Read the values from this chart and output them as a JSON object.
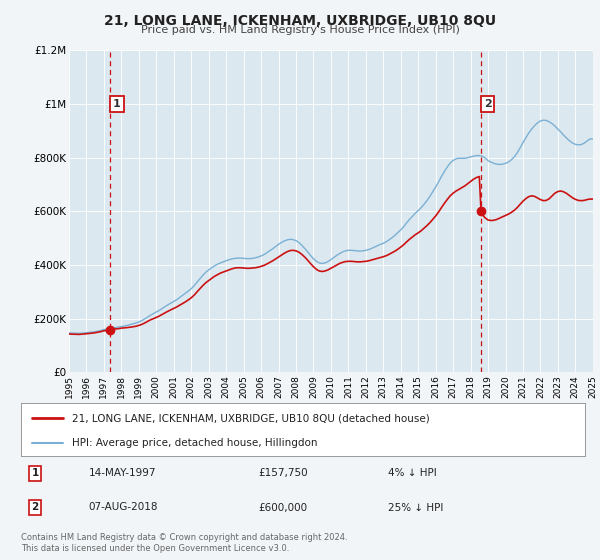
{
  "title": "21, LONG LANE, ICKENHAM, UXBRIDGE, UB10 8QU",
  "subtitle": "Price paid vs. HM Land Registry's House Price Index (HPI)",
  "background_color": "#f2f5f8",
  "plot_background": "#dce8f0",
  "xlim": [
    1995,
    2025
  ],
  "ylim": [
    0,
    1200000
  ],
  "yticks": [
    0,
    200000,
    400000,
    600000,
    800000,
    1000000,
    1200000
  ],
  "ytick_labels": [
    "£0",
    "£200K",
    "£400K",
    "£600K",
    "£800K",
    "£1M",
    "£1.2M"
  ],
  "xticks": [
    1995,
    1996,
    1997,
    1998,
    1999,
    2000,
    2001,
    2002,
    2003,
    2004,
    2005,
    2006,
    2007,
    2008,
    2009,
    2010,
    2011,
    2012,
    2013,
    2014,
    2015,
    2016,
    2017,
    2018,
    2019,
    2020,
    2021,
    2022,
    2023,
    2024,
    2025
  ],
  "sale1_x": 1997.37,
  "sale1_y": 157750,
  "sale2_x": 2018.6,
  "sale2_y": 600000,
  "legend_line1": "21, LONG LANE, ICKENHAM, UXBRIDGE, UB10 8QU (detached house)",
  "legend_line2": "HPI: Average price, detached house, Hillingdon",
  "table_row1": [
    "1",
    "14-MAY-1997",
    "£157,750",
    "4% ↓ HPI"
  ],
  "table_row2": [
    "2",
    "07-AUG-2018",
    "£600,000",
    "25% ↓ HPI"
  ],
  "footer": "Contains HM Land Registry data © Crown copyright and database right 2024.\nThis data is licensed under the Open Government Licence v3.0.",
  "red_color": "#cc1111",
  "blue_color": "#7ab0d4",
  "hpi_red": [
    [
      1995.0,
      143000
    ],
    [
      1995.08,
      142800
    ],
    [
      1995.17,
      142600
    ],
    [
      1995.25,
      142400
    ],
    [
      1995.33,
      142200
    ],
    [
      1995.42,
      142000
    ],
    [
      1995.5,
      141800
    ],
    [
      1995.58,
      141600
    ],
    [
      1995.67,
      142000
    ],
    [
      1995.75,
      142500
    ],
    [
      1995.83,
      143000
    ],
    [
      1995.92,
      143500
    ],
    [
      1996.0,
      144000
    ],
    [
      1996.08,
      144500
    ],
    [
      1996.17,
      145000
    ],
    [
      1996.25,
      145500
    ],
    [
      1996.33,
      146000
    ],
    [
      1996.42,
      147000
    ],
    [
      1996.5,
      148000
    ],
    [
      1996.58,
      149000
    ],
    [
      1996.67,
      150000
    ],
    [
      1996.75,
      151000
    ],
    [
      1996.83,
      152000
    ],
    [
      1996.92,
      154000
    ],
    [
      1997.0,
      155000
    ],
    [
      1997.17,
      156000
    ],
    [
      1997.37,
      157750
    ],
    [
      1997.5,
      160000
    ],
    [
      1997.67,
      162000
    ],
    [
      1997.83,
      163000
    ],
    [
      1998.0,
      165000
    ],
    [
      1998.17,
      166000
    ],
    [
      1998.33,
      167000
    ],
    [
      1998.5,
      168500
    ],
    [
      1998.67,
      170000
    ],
    [
      1998.83,
      172000
    ],
    [
      1999.0,
      175000
    ],
    [
      1999.17,
      179000
    ],
    [
      1999.33,
      184000
    ],
    [
      1999.5,
      190000
    ],
    [
      1999.67,
      196000
    ],
    [
      1999.83,
      200000
    ],
    [
      2000.0,
      205000
    ],
    [
      2000.17,
      210000
    ],
    [
      2000.33,
      216000
    ],
    [
      2000.5,
      222000
    ],
    [
      2000.67,
      228000
    ],
    [
      2000.83,
      233000
    ],
    [
      2001.0,
      238000
    ],
    [
      2001.17,
      244000
    ],
    [
      2001.33,
      250000
    ],
    [
      2001.5,
      256000
    ],
    [
      2001.67,
      263000
    ],
    [
      2001.83,
      270000
    ],
    [
      2002.0,
      278000
    ],
    [
      2002.17,
      288000
    ],
    [
      2002.33,
      300000
    ],
    [
      2002.5,
      312000
    ],
    [
      2002.67,
      324000
    ],
    [
      2002.83,
      334000
    ],
    [
      2003.0,
      342000
    ],
    [
      2003.17,
      350000
    ],
    [
      2003.33,
      358000
    ],
    [
      2003.5,
      364000
    ],
    [
      2003.67,
      370000
    ],
    [
      2003.83,
      374000
    ],
    [
      2004.0,
      378000
    ],
    [
      2004.17,
      382000
    ],
    [
      2004.33,
      386000
    ],
    [
      2004.5,
      389000
    ],
    [
      2004.67,
      390000
    ],
    [
      2004.83,
      390000
    ],
    [
      2005.0,
      389000
    ],
    [
      2005.17,
      388000
    ],
    [
      2005.33,
      388000
    ],
    [
      2005.5,
      389000
    ],
    [
      2005.67,
      390000
    ],
    [
      2005.83,
      392000
    ],
    [
      2006.0,
      395000
    ],
    [
      2006.17,
      399000
    ],
    [
      2006.33,
      404000
    ],
    [
      2006.5,
      410000
    ],
    [
      2006.67,
      416000
    ],
    [
      2006.83,
      423000
    ],
    [
      2007.0,
      430000
    ],
    [
      2007.17,
      437000
    ],
    [
      2007.33,
      444000
    ],
    [
      2007.5,
      450000
    ],
    [
      2007.67,
      454000
    ],
    [
      2007.83,
      455000
    ],
    [
      2008.0,
      453000
    ],
    [
      2008.17,
      448000
    ],
    [
      2008.33,
      440000
    ],
    [
      2008.5,
      430000
    ],
    [
      2008.67,
      418000
    ],
    [
      2008.83,
      406000
    ],
    [
      2009.0,
      394000
    ],
    [
      2009.17,
      384000
    ],
    [
      2009.33,
      378000
    ],
    [
      2009.5,
      376000
    ],
    [
      2009.67,
      378000
    ],
    [
      2009.83,
      382000
    ],
    [
      2010.0,
      388000
    ],
    [
      2010.17,
      394000
    ],
    [
      2010.33,
      400000
    ],
    [
      2010.5,
      406000
    ],
    [
      2010.67,
      410000
    ],
    [
      2010.83,
      413000
    ],
    [
      2011.0,
      414000
    ],
    [
      2011.17,
      414000
    ],
    [
      2011.33,
      413000
    ],
    [
      2011.5,
      412000
    ],
    [
      2011.67,
      412000
    ],
    [
      2011.83,
      413000
    ],
    [
      2012.0,
      414000
    ],
    [
      2012.17,
      416000
    ],
    [
      2012.33,
      419000
    ],
    [
      2012.5,
      422000
    ],
    [
      2012.67,
      425000
    ],
    [
      2012.83,
      428000
    ],
    [
      2013.0,
      431000
    ],
    [
      2013.17,
      435000
    ],
    [
      2013.33,
      440000
    ],
    [
      2013.5,
      446000
    ],
    [
      2013.67,
      452000
    ],
    [
      2013.83,
      459000
    ],
    [
      2014.0,
      467000
    ],
    [
      2014.17,
      476000
    ],
    [
      2014.33,
      486000
    ],
    [
      2014.5,
      496000
    ],
    [
      2014.67,
      505000
    ],
    [
      2014.83,
      513000
    ],
    [
      2015.0,
      520000
    ],
    [
      2015.17,
      528000
    ],
    [
      2015.33,
      537000
    ],
    [
      2015.5,
      547000
    ],
    [
      2015.67,
      558000
    ],
    [
      2015.83,
      570000
    ],
    [
      2016.0,
      583000
    ],
    [
      2016.17,
      598000
    ],
    [
      2016.33,
      614000
    ],
    [
      2016.5,
      630000
    ],
    [
      2016.67,
      645000
    ],
    [
      2016.83,
      658000
    ],
    [
      2017.0,
      668000
    ],
    [
      2017.17,
      676000
    ],
    [
      2017.33,
      682000
    ],
    [
      2017.5,
      688000
    ],
    [
      2017.67,
      695000
    ],
    [
      2017.83,
      703000
    ],
    [
      2018.0,
      712000
    ],
    [
      2018.17,
      720000
    ],
    [
      2018.33,
      726000
    ],
    [
      2018.5,
      730000
    ],
    [
      2018.6,
      600000
    ],
    [
      2018.67,
      590000
    ],
    [
      2018.75,
      582000
    ],
    [
      2018.83,
      576000
    ],
    [
      2018.92,
      572000
    ],
    [
      2019.0,
      568000
    ],
    [
      2019.17,
      566000
    ],
    [
      2019.33,
      567000
    ],
    [
      2019.5,
      570000
    ],
    [
      2019.67,
      575000
    ],
    [
      2019.83,
      580000
    ],
    [
      2020.0,
      585000
    ],
    [
      2020.17,
      590000
    ],
    [
      2020.33,
      596000
    ],
    [
      2020.5,
      604000
    ],
    [
      2020.67,
      614000
    ],
    [
      2020.83,
      626000
    ],
    [
      2021.0,
      638000
    ],
    [
      2021.17,
      648000
    ],
    [
      2021.33,
      655000
    ],
    [
      2021.5,
      658000
    ],
    [
      2021.67,
      656000
    ],
    [
      2021.83,
      650000
    ],
    [
      2022.0,
      644000
    ],
    [
      2022.17,
      640000
    ],
    [
      2022.33,
      641000
    ],
    [
      2022.5,
      647000
    ],
    [
      2022.67,
      658000
    ],
    [
      2022.83,
      668000
    ],
    [
      2023.0,
      674000
    ],
    [
      2023.17,
      676000
    ],
    [
      2023.33,
      673000
    ],
    [
      2023.5,
      667000
    ],
    [
      2023.67,
      659000
    ],
    [
      2023.83,
      651000
    ],
    [
      2024.0,
      645000
    ],
    [
      2024.17,
      641000
    ],
    [
      2024.33,
      640000
    ],
    [
      2024.5,
      641000
    ],
    [
      2024.67,
      644000
    ],
    [
      2024.83,
      646000
    ],
    [
      2025.0,
      646000
    ]
  ],
  "hpi_blue": [
    [
      1995.0,
      147000
    ],
    [
      1995.08,
      146800
    ],
    [
      1995.17,
      146600
    ],
    [
      1995.25,
      146400
    ],
    [
      1995.33,
      146200
    ],
    [
      1995.42,
      146000
    ],
    [
      1995.5,
      145800
    ],
    [
      1995.58,
      145600
    ],
    [
      1995.67,
      146000
    ],
    [
      1995.75,
      146500
    ],
    [
      1995.83,
      147000
    ],
    [
      1995.92,
      147500
    ],
    [
      1996.0,
      148000
    ],
    [
      1996.08,
      148500
    ],
    [
      1996.17,
      149000
    ],
    [
      1996.25,
      149500
    ],
    [
      1996.33,
      150000
    ],
    [
      1996.42,
      151000
    ],
    [
      1996.5,
      152000
    ],
    [
      1996.58,
      153000
    ],
    [
      1996.67,
      154000
    ],
    [
      1996.75,
      155000
    ],
    [
      1996.83,
      156000
    ],
    [
      1996.92,
      158000
    ],
    [
      1997.0,
      160000
    ],
    [
      1997.17,
      161500
    ],
    [
      1997.37,
      163000
    ],
    [
      1997.5,
      165000
    ],
    [
      1997.67,
      167000
    ],
    [
      1997.83,
      169000
    ],
    [
      1998.0,
      171000
    ],
    [
      1998.17,
      173000
    ],
    [
      1998.33,
      175000
    ],
    [
      1998.5,
      178000
    ],
    [
      1998.67,
      181000
    ],
    [
      1998.83,
      184000
    ],
    [
      1999.0,
      188000
    ],
    [
      1999.17,
      193000
    ],
    [
      1999.33,
      199000
    ],
    [
      1999.5,
      206000
    ],
    [
      1999.67,
      213000
    ],
    [
      1999.83,
      219000
    ],
    [
      2000.0,
      225000
    ],
    [
      2000.17,
      231000
    ],
    [
      2000.33,
      238000
    ],
    [
      2000.5,
      245000
    ],
    [
      2000.67,
      252000
    ],
    [
      2000.83,
      258000
    ],
    [
      2001.0,
      264000
    ],
    [
      2001.17,
      271000
    ],
    [
      2001.33,
      279000
    ],
    [
      2001.5,
      287000
    ],
    [
      2001.67,
      295000
    ],
    [
      2001.83,
      303000
    ],
    [
      2002.0,
      312000
    ],
    [
      2002.17,
      323000
    ],
    [
      2002.33,
      336000
    ],
    [
      2002.5,
      349000
    ],
    [
      2002.67,
      362000
    ],
    [
      2002.83,
      373000
    ],
    [
      2003.0,
      382000
    ],
    [
      2003.17,
      390000
    ],
    [
      2003.33,
      397000
    ],
    [
      2003.5,
      403000
    ],
    [
      2003.67,
      408000
    ],
    [
      2003.83,
      412000
    ],
    [
      2004.0,
      416000
    ],
    [
      2004.17,
      420000
    ],
    [
      2004.33,
      423000
    ],
    [
      2004.5,
      425000
    ],
    [
      2004.67,
      426000
    ],
    [
      2004.83,
      426000
    ],
    [
      2005.0,
      425000
    ],
    [
      2005.17,
      424000
    ],
    [
      2005.33,
      424000
    ],
    [
      2005.5,
      425000
    ],
    [
      2005.67,
      427000
    ],
    [
      2005.83,
      430000
    ],
    [
      2006.0,
      434000
    ],
    [
      2006.17,
      439000
    ],
    [
      2006.33,
      446000
    ],
    [
      2006.5,
      453000
    ],
    [
      2006.67,
      461000
    ],
    [
      2006.83,
      469000
    ],
    [
      2007.0,
      477000
    ],
    [
      2007.17,
      484000
    ],
    [
      2007.33,
      490000
    ],
    [
      2007.5,
      494000
    ],
    [
      2007.67,
      496000
    ],
    [
      2007.83,
      495000
    ],
    [
      2008.0,
      491000
    ],
    [
      2008.17,
      484000
    ],
    [
      2008.33,
      474000
    ],
    [
      2008.5,
      462000
    ],
    [
      2008.67,
      449000
    ],
    [
      2008.83,
      436000
    ],
    [
      2009.0,
      424000
    ],
    [
      2009.17,
      414000
    ],
    [
      2009.33,
      408000
    ],
    [
      2009.5,
      406000
    ],
    [
      2009.67,
      408000
    ],
    [
      2009.83,
      413000
    ],
    [
      2010.0,
      420000
    ],
    [
      2010.17,
      428000
    ],
    [
      2010.33,
      436000
    ],
    [
      2010.5,
      443000
    ],
    [
      2010.67,
      449000
    ],
    [
      2010.83,
      453000
    ],
    [
      2011.0,
      455000
    ],
    [
      2011.17,
      455000
    ],
    [
      2011.33,
      454000
    ],
    [
      2011.5,
      453000
    ],
    [
      2011.67,
      452000
    ],
    [
      2011.83,
      453000
    ],
    [
      2012.0,
      455000
    ],
    [
      2012.17,
      458000
    ],
    [
      2012.33,
      462000
    ],
    [
      2012.5,
      467000
    ],
    [
      2012.67,
      472000
    ],
    [
      2012.83,
      477000
    ],
    [
      2013.0,
      481000
    ],
    [
      2013.17,
      487000
    ],
    [
      2013.33,
      494000
    ],
    [
      2013.5,
      502000
    ],
    [
      2013.67,
      511000
    ],
    [
      2013.83,
      521000
    ],
    [
      2014.0,
      531000
    ],
    [
      2014.17,
      543000
    ],
    [
      2014.33,
      557000
    ],
    [
      2014.5,
      570000
    ],
    [
      2014.67,
      582000
    ],
    [
      2014.83,
      593000
    ],
    [
      2015.0,
      603000
    ],
    [
      2015.17,
      614000
    ],
    [
      2015.33,
      626000
    ],
    [
      2015.5,
      640000
    ],
    [
      2015.67,
      656000
    ],
    [
      2015.83,
      673000
    ],
    [
      2016.0,
      691000
    ],
    [
      2016.17,
      710000
    ],
    [
      2016.33,
      730000
    ],
    [
      2016.5,
      749000
    ],
    [
      2016.67,
      766000
    ],
    [
      2016.83,
      780000
    ],
    [
      2017.0,
      790000
    ],
    [
      2017.17,
      796000
    ],
    [
      2017.33,
      798000
    ],
    [
      2017.5,
      798000
    ],
    [
      2017.67,
      798000
    ],
    [
      2017.83,
      800000
    ],
    [
      2018.0,
      803000
    ],
    [
      2018.17,
      806000
    ],
    [
      2018.33,
      808000
    ],
    [
      2018.5,
      808000
    ],
    [
      2018.6,
      807000
    ],
    [
      2018.67,
      806000
    ],
    [
      2018.75,
      803000
    ],
    [
      2018.83,
      799000
    ],
    [
      2018.92,
      794000
    ],
    [
      2019.0,
      789000
    ],
    [
      2019.17,
      784000
    ],
    [
      2019.33,
      779000
    ],
    [
      2019.5,
      776000
    ],
    [
      2019.67,
      775000
    ],
    [
      2019.83,
      776000
    ],
    [
      2020.0,
      779000
    ],
    [
      2020.17,
      784000
    ],
    [
      2020.33,
      792000
    ],
    [
      2020.5,
      803000
    ],
    [
      2020.67,
      818000
    ],
    [
      2020.83,
      836000
    ],
    [
      2021.0,
      856000
    ],
    [
      2021.17,
      875000
    ],
    [
      2021.33,
      892000
    ],
    [
      2021.5,
      907000
    ],
    [
      2021.67,
      920000
    ],
    [
      2021.83,
      930000
    ],
    [
      2022.0,
      937000
    ],
    [
      2022.17,
      940000
    ],
    [
      2022.33,
      939000
    ],
    [
      2022.5,
      934000
    ],
    [
      2022.67,
      927000
    ],
    [
      2022.83,
      918000
    ],
    [
      2023.0,
      907000
    ],
    [
      2023.17,
      896000
    ],
    [
      2023.33,
      884000
    ],
    [
      2023.5,
      873000
    ],
    [
      2023.67,
      863000
    ],
    [
      2023.83,
      855000
    ],
    [
      2024.0,
      850000
    ],
    [
      2024.17,
      848000
    ],
    [
      2024.33,
      849000
    ],
    [
      2024.5,
      854000
    ],
    [
      2024.67,
      862000
    ],
    [
      2024.83,
      870000
    ],
    [
      2025.0,
      870000
    ]
  ]
}
